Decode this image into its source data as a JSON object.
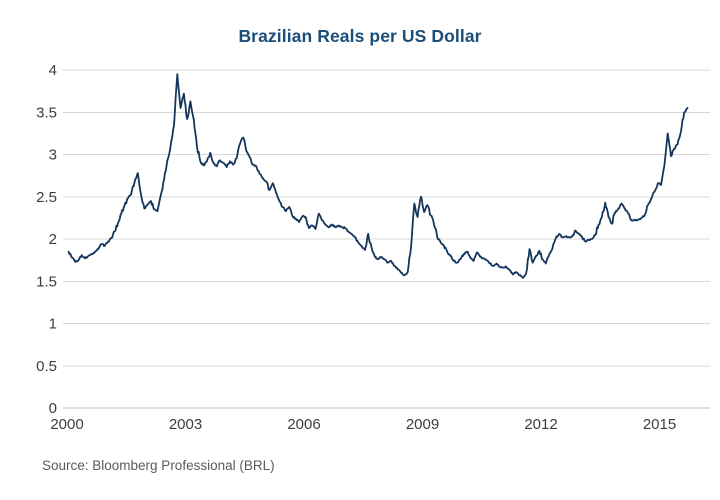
{
  "colors": {
    "background": "#ffffff",
    "title": "#1b4e79",
    "line": "#14365c",
    "grid": "#d8d8d8",
    "axis": "#c0c0c0",
    "tick_label": "#3d3d3d",
    "source_text": "#5a5a5a"
  },
  "chart_data": {
    "type": "line",
    "title": "Brazilian Reals per US Dollar",
    "source": "Source: Bloomberg Professional (BRL)",
    "xlabel": "",
    "ylabel": "",
    "x_tick_labels": [
      "2000",
      "2003",
      "2006",
      "2009",
      "2012",
      "2015"
    ],
    "y_tick_labels": [
      "0",
      "0.5",
      "1",
      "1.5",
      "2",
      "2.5",
      "3",
      "3.5",
      "4"
    ],
    "xlim": [
      2000,
      2015.75
    ],
    "ylim": [
      0,
      4
    ],
    "grid": "horizontal",
    "legend": "none",
    "series": [
      {
        "name": "BRL per USD",
        "frequency": "monthly",
        "start": "2000-01",
        "end": "2015-09",
        "values": [
          1.85,
          1.78,
          1.73,
          1.75,
          1.81,
          1.77,
          1.8,
          1.82,
          1.85,
          1.88,
          1.94,
          1.92,
          1.97,
          2.01,
          2.09,
          2.19,
          2.3,
          2.4,
          2.48,
          2.53,
          2.67,
          2.78,
          2.52,
          2.36,
          2.41,
          2.45,
          2.35,
          2.33,
          2.52,
          2.7,
          2.93,
          3.11,
          3.34,
          3.95,
          3.55,
          3.72,
          3.42,
          3.63,
          3.42,
          3.09,
          2.92,
          2.87,
          2.92,
          3.02,
          2.9,
          2.86,
          2.93,
          2.9,
          2.85,
          2.92,
          2.88,
          2.95,
          3.12,
          3.2,
          3.04,
          2.97,
          2.88,
          2.86,
          2.77,
          2.72,
          2.68,
          2.58,
          2.66,
          2.55,
          2.45,
          2.38,
          2.33,
          2.38,
          2.27,
          2.24,
          2.2,
          2.27,
          2.26,
          2.13,
          2.16,
          2.12,
          2.3,
          2.22,
          2.17,
          2.14,
          2.17,
          2.14,
          2.16,
          2.14,
          2.13,
          2.09,
          2.06,
          2.02,
          1.96,
          1.92,
          1.87,
          2.06,
          1.9,
          1.79,
          1.76,
          1.79,
          1.76,
          1.72,
          1.74,
          1.68,
          1.64,
          1.6,
          1.57,
          1.61,
          1.9,
          2.42,
          2.26,
          2.5,
          2.32,
          2.4,
          2.28,
          2.17,
          2.02,
          1.96,
          1.92,
          1.85,
          1.8,
          1.74,
          1.72,
          1.76,
          1.82,
          1.85,
          1.78,
          1.74,
          1.84,
          1.79,
          1.77,
          1.75,
          1.71,
          1.68,
          1.71,
          1.67,
          1.66,
          1.67,
          1.63,
          1.58,
          1.61,
          1.57,
          1.54,
          1.6,
          1.88,
          1.72,
          1.8,
          1.86,
          1.76,
          1.71,
          1.82,
          1.89,
          2.01,
          2.06,
          2.02,
          2.03,
          2.02,
          2.03,
          2.1,
          2.06,
          2.02,
          1.97,
          1.99,
          2.0,
          2.05,
          2.17,
          2.26,
          2.43,
          2.26,
          2.18,
          2.31,
          2.36,
          2.42,
          2.36,
          2.3,
          2.22,
          2.22,
          2.23,
          2.25,
          2.28,
          2.4,
          2.48,
          2.56,
          2.66,
          2.64,
          2.87,
          3.25,
          2.98,
          3.07,
          3.12,
          3.27,
          3.5,
          3.55
        ]
      }
    ]
  }
}
